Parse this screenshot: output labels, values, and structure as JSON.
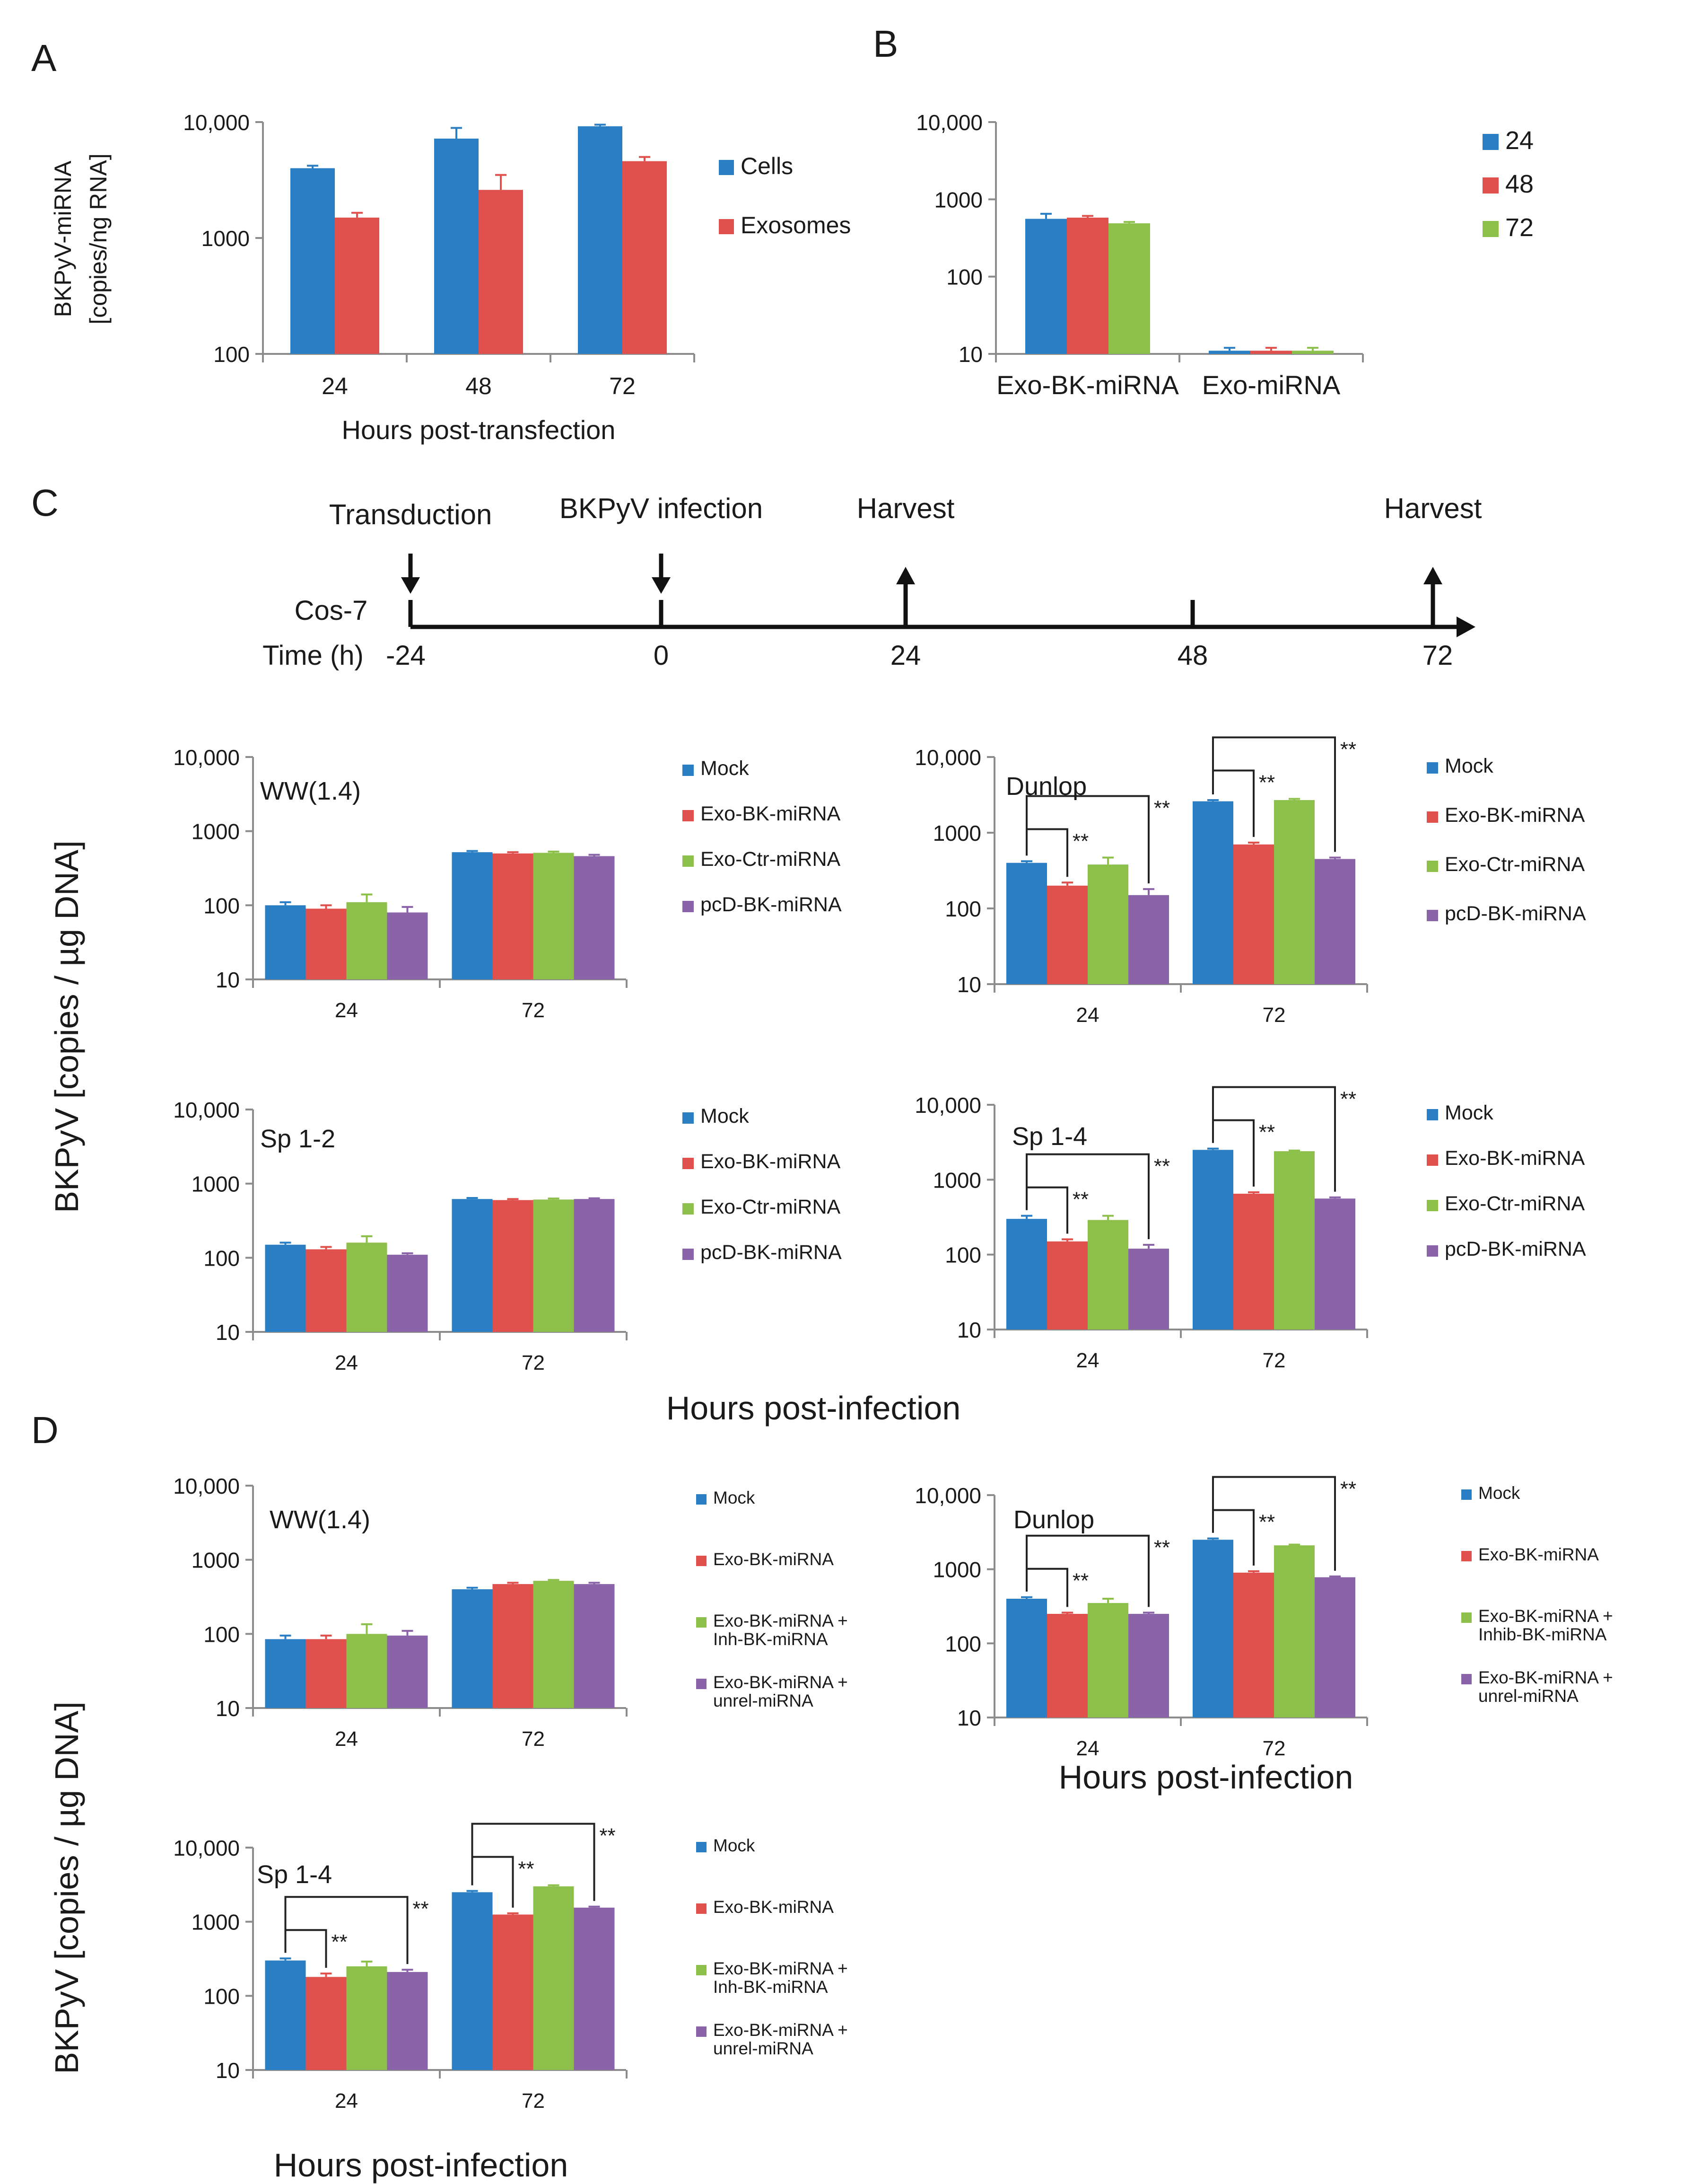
{
  "colors": {
    "blue": "#2a7fc4",
    "red": "#e0504d",
    "green": "#8cc04a",
    "purple": "#8b63a8",
    "axis": "#8c8c8c",
    "text": "#1a1a1a"
  },
  "panel_letters": [
    "A",
    "B",
    "C",
    "D"
  ],
  "shared_labels": {
    "c_ylabel": "BKPyV  [copies / µg DNA]",
    "c_xlabel": "Hours post-infection",
    "d_ylabel": "BKPyV  [copies / µg DNA]",
    "d_xlabel_top": "Hours post-infection",
    "d_xlabel_bottom": "Hours post-infection"
  },
  "timeline": {
    "row_label": "Cos-7",
    "time_label": "Time  (h)",
    "ticks": [
      "-24",
      "0",
      "24",
      "48",
      "72"
    ],
    "events": [
      {
        "label": "Transduction",
        "at": "-24",
        "arrow": "down"
      },
      {
        "label": "BKPyV infection",
        "at": "0",
        "arrow": "down"
      },
      {
        "label": "Harvest",
        "at": "24",
        "arrow": "up"
      },
      {
        "label": "Harvest",
        "at": "72",
        "arrow": "up"
      }
    ]
  },
  "chart_data": [
    {
      "id": "A",
      "type": "bar",
      "scale": "log",
      "ylim": [
        100,
        10000
      ],
      "yticks": [
        "100",
        "1000",
        "10,000"
      ],
      "ylabel": [
        "BKPyV-miRNA",
        "[copies/ng RNA]"
      ],
      "xlabel": "Hours  post-transfection",
      "categories": [
        "24",
        "48",
        "72"
      ],
      "series": [
        {
          "name": "Cells",
          "color": "blue",
          "values": [
            4000,
            7200,
            9200
          ],
          "errors": [
            4200,
            8900,
            9500
          ]
        },
        {
          "name": "Exosomes",
          "color": "red",
          "values": [
            1500,
            2600,
            4600
          ],
          "errors": [
            1650,
            3500,
            5000
          ]
        }
      ],
      "legend": "right"
    },
    {
      "id": "B",
      "type": "bar",
      "scale": "log",
      "ylim": [
        10,
        10000
      ],
      "yticks": [
        "10",
        "100",
        "1000",
        "10,000"
      ],
      "categories": [
        "Exo-BK-miRNA",
        "Exo-miRNA"
      ],
      "series": [
        {
          "name": "24",
          "color": "blue",
          "values": [
            560,
            11
          ],
          "errors": [
            650,
            12
          ]
        },
        {
          "name": "48",
          "color": "red",
          "values": [
            580,
            11
          ],
          "errors": [
            610,
            12
          ]
        },
        {
          "name": "72",
          "color": "green",
          "values": [
            490,
            11
          ],
          "errors": [
            510,
            12
          ]
        }
      ],
      "legend": "right"
    },
    {
      "id": "C1",
      "type": "bar",
      "scale": "log",
      "ylim": [
        10,
        10000
      ],
      "title": "WW(1.4)",
      "yticks": [
        "10",
        "100",
        "1000",
        "10,000"
      ],
      "categories": [
        "24",
        "72"
      ],
      "series": [
        {
          "name": "Mock",
          "color": "blue",
          "values": [
            100,
            520
          ],
          "errors": [
            110,
            540
          ]
        },
        {
          "name": "Exo-BK-miRNA",
          "color": "red",
          "values": [
            90,
            500
          ],
          "errors": [
            100,
            520
          ]
        },
        {
          "name": "Exo-Ctr-miRNA",
          "color": "green",
          "values": [
            110,
            510
          ],
          "errors": [
            140,
            530
          ]
        },
        {
          "name": "pcD-BK-miRNA",
          "color": "purple",
          "values": [
            80,
            460
          ],
          "errors": [
            95,
            480
          ]
        }
      ],
      "legend": "right"
    },
    {
      "id": "C2",
      "type": "bar",
      "scale": "log",
      "ylim": [
        10,
        10000
      ],
      "title": "Dunlop",
      "yticks": [
        "10",
        "100",
        "1000",
        "10,000"
      ],
      "categories": [
        "24",
        "72"
      ],
      "series": [
        {
          "name": "Mock",
          "color": "blue",
          "values": [
            400,
            2600
          ],
          "errors": [
            420,
            2700
          ]
        },
        {
          "name": "Exo-BK-miRNA",
          "color": "red",
          "values": [
            200,
            700
          ],
          "errors": [
            220,
            740
          ]
        },
        {
          "name": "Exo-Ctr-miRNA",
          "color": "green",
          "values": [
            380,
            2700
          ],
          "errors": [
            470,
            2800
          ]
        },
        {
          "name": "pcD-BK-miRNA",
          "color": "purple",
          "values": [
            150,
            450
          ],
          "errors": [
            180,
            470
          ]
        }
      ],
      "significance": [
        {
          "label": "**",
          "group": 0,
          "series": 1
        },
        {
          "label": "**",
          "group": 0,
          "series": 3
        },
        {
          "label": "**",
          "group": 1,
          "series": 1
        },
        {
          "label": "**",
          "group": 1,
          "series": 3
        }
      ],
      "legend": "right"
    },
    {
      "id": "C3",
      "type": "bar",
      "scale": "log",
      "ylim": [
        10,
        10000
      ],
      "title": "Sp 1-2",
      "yticks": [
        "10",
        "100",
        "1000",
        "10,000"
      ],
      "categories": [
        "24",
        "72"
      ],
      "series": [
        {
          "name": "Mock",
          "color": "blue",
          "values": [
            150,
            620
          ],
          "errors": [
            160,
            640
          ]
        },
        {
          "name": "Exo-BK-miRNA",
          "color": "red",
          "values": [
            130,
            600
          ],
          "errors": [
            140,
            620
          ]
        },
        {
          "name": "Exo-Ctr-miRNA",
          "color": "green",
          "values": [
            160,
            610
          ],
          "errors": [
            195,
            630
          ]
        },
        {
          "name": "pcD-BK-miRNA",
          "color": "purple",
          "values": [
            110,
            620
          ],
          "errors": [
            115,
            635
          ]
        }
      ],
      "legend": "right"
    },
    {
      "id": "C4",
      "type": "bar",
      "scale": "log",
      "ylim": [
        10,
        10000
      ],
      "title": "Sp 1-4",
      "yticks": [
        "10",
        "100",
        "1000",
        "10,000"
      ],
      "categories": [
        "24",
        "72"
      ],
      "series": [
        {
          "name": "Mock",
          "color": "blue",
          "values": [
            300,
            2500
          ],
          "errors": [
            330,
            2600
          ]
        },
        {
          "name": "Exo-BK-miRNA",
          "color": "red",
          "values": [
            150,
            650
          ],
          "errors": [
            160,
            680
          ]
        },
        {
          "name": "Exo-Ctr-miRNA",
          "color": "green",
          "values": [
            290,
            2400
          ],
          "errors": [
            330,
            2450
          ]
        },
        {
          "name": "pcD-BK-miRNA",
          "color": "purple",
          "values": [
            120,
            560
          ],
          "errors": [
            135,
            580
          ]
        }
      ],
      "significance": [
        {
          "label": "**",
          "group": 0,
          "series": 1
        },
        {
          "label": "**",
          "group": 0,
          "series": 3
        },
        {
          "label": "**",
          "group": 1,
          "series": 1
        },
        {
          "label": "**",
          "group": 1,
          "series": 3
        }
      ],
      "legend": "right"
    },
    {
      "id": "D1",
      "type": "bar",
      "scale": "log",
      "ylim": [
        10,
        10000
      ],
      "title": "WW(1.4)",
      "yticks": [
        "10",
        "100",
        "1000",
        "10,000"
      ],
      "categories": [
        "24",
        "72"
      ],
      "series": [
        {
          "name": "Mock",
          "color": "blue",
          "values": [
            85,
            400
          ],
          "errors": [
            95,
            420
          ]
        },
        {
          "name": "Exo-BK-miRNA",
          "color": "red",
          "values": [
            85,
            470
          ],
          "errors": [
            95,
            490
          ]
        },
        {
          "name": "Exo-BK-miRNA + Inh-BK-miRNA",
          "color": "green",
          "values": [
            100,
            520
          ],
          "errors": [
            135,
            535
          ]
        },
        {
          "name": "Exo-BK-miRNA + unrel-miRNA",
          "color": "purple",
          "values": [
            95,
            470
          ],
          "errors": [
            110,
            490
          ]
        }
      ],
      "legend": "right"
    },
    {
      "id": "D2",
      "type": "bar",
      "scale": "log",
      "ylim": [
        10,
        10000
      ],
      "title": "Dunlop",
      "yticks": [
        "10",
        "100",
        "1000",
        "10,000"
      ],
      "categories": [
        "24",
        "72"
      ],
      "series": [
        {
          "name": "Mock",
          "color": "blue",
          "values": [
            400,
            2500
          ],
          "errors": [
            420,
            2600
          ]
        },
        {
          "name": "Exo-BK-miRNA",
          "color": "red",
          "values": [
            250,
            900
          ],
          "errors": [
            260,
            940
          ]
        },
        {
          "name": "Exo-BK-miRNA + Inhib-BK-miRNA",
          "color": "green",
          "values": [
            350,
            2100
          ],
          "errors": [
            400,
            2150
          ]
        },
        {
          "name": "Exo-BK-miRNA + unrel-miRNA",
          "color": "purple",
          "values": [
            250,
            780
          ],
          "errors": [
            260,
            800
          ]
        }
      ],
      "significance": [
        {
          "label": "**",
          "group": 0,
          "series": 1
        },
        {
          "label": "**",
          "group": 0,
          "series": 3
        },
        {
          "label": "**",
          "group": 1,
          "series": 1
        },
        {
          "label": "**",
          "group": 1,
          "series": 3
        }
      ],
      "legend": "right"
    },
    {
      "id": "D3",
      "type": "bar",
      "scale": "log",
      "ylim": [
        10,
        10000
      ],
      "title": "Sp 1-4",
      "yticks": [
        "10",
        "100",
        "1000",
        "10,000"
      ],
      "categories": [
        "24",
        "72"
      ],
      "series": [
        {
          "name": "Mock",
          "color": "blue",
          "values": [
            300,
            2500
          ],
          "errors": [
            320,
            2600
          ]
        },
        {
          "name": "Exo-BK-miRNA",
          "color": "red",
          "values": [
            180,
            1250
          ],
          "errors": [
            200,
            1300
          ]
        },
        {
          "name": "Exo-BK-miRNA + Inh-BK-miRNA",
          "color": "green",
          "values": [
            250,
            3000
          ],
          "errors": [
            290,
            3100
          ]
        },
        {
          "name": "Exo-BK-miRNA + unrel-miRNA",
          "color": "purple",
          "values": [
            210,
            1550
          ],
          "errors": [
            225,
            1600
          ]
        }
      ],
      "significance": [
        {
          "label": "**",
          "group": 0,
          "series": 1
        },
        {
          "label": "**",
          "group": 0,
          "series": 3
        },
        {
          "label": "**",
          "group": 1,
          "series": 1
        },
        {
          "label": "**",
          "group": 1,
          "series": 3
        }
      ],
      "legend": "right"
    }
  ]
}
